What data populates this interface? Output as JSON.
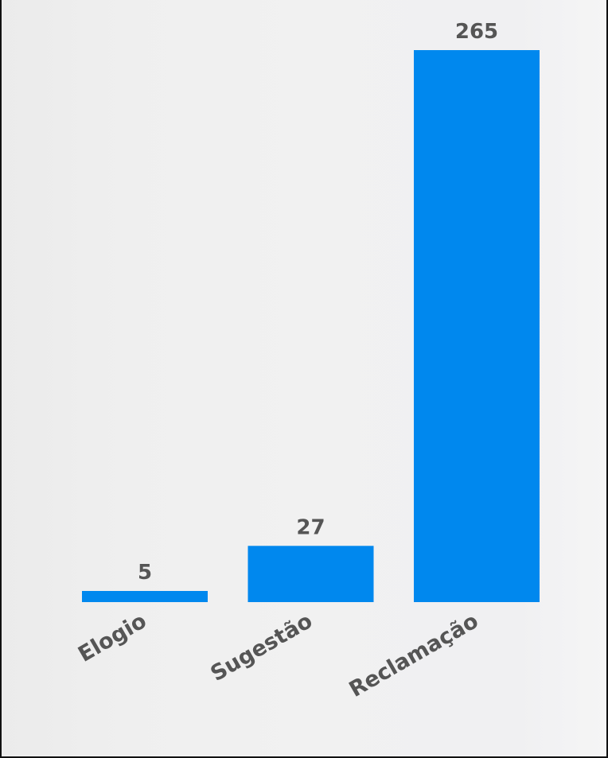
{
  "chart_data": {
    "type": "bar",
    "categories": [
      "Elogio",
      "Sugestão",
      "Reclamação"
    ],
    "values": [
      5,
      27,
      265
    ],
    "data_labels": [
      "5",
      "27",
      "265"
    ],
    "title": "",
    "xlabel": "",
    "ylabel": "",
    "ylim": [
      0,
      265
    ],
    "grid": false,
    "legend": "none",
    "bar_color": "#0088ee",
    "label_color": "#555555",
    "category_label_rotation_deg": -30
  }
}
